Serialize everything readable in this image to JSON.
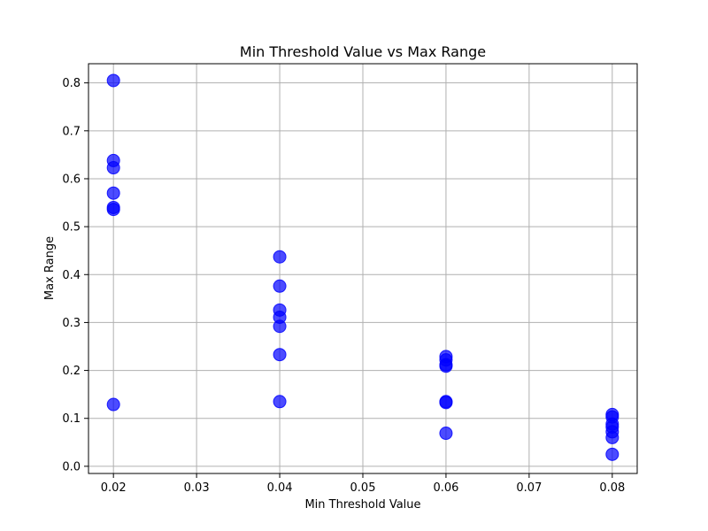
{
  "chart_data": {
    "type": "scatter",
    "title": "Min Threshold Value vs Max Range",
    "xlabel": "Min Threshold Value",
    "ylabel": "Max Range",
    "xlim": [
      0.017,
      0.083
    ],
    "ylim": [
      -0.015,
      0.84
    ],
    "xticks": [
      0.02,
      0.03,
      0.04,
      0.05,
      0.06,
      0.07,
      0.08
    ],
    "xtick_labels": [
      "0.02",
      "0.03",
      "0.04",
      "0.05",
      "0.06",
      "0.07",
      "0.08"
    ],
    "yticks": [
      0.0,
      0.1,
      0.2,
      0.3,
      0.4,
      0.5,
      0.6,
      0.7,
      0.8
    ],
    "ytick_labels": [
      "0.0",
      "0.1",
      "0.2",
      "0.3",
      "0.4",
      "0.5",
      "0.6",
      "0.7",
      "0.8"
    ],
    "grid": true,
    "marker_color": "#0000ff",
    "marker_opacity": 0.7,
    "points": [
      {
        "x": 0.02,
        "y": 0.805
      },
      {
        "x": 0.02,
        "y": 0.638
      },
      {
        "x": 0.02,
        "y": 0.623
      },
      {
        "x": 0.02,
        "y": 0.57
      },
      {
        "x": 0.02,
        "y": 0.54
      },
      {
        "x": 0.02,
        "y": 0.536
      },
      {
        "x": 0.02,
        "y": 0.129
      },
      {
        "x": 0.04,
        "y": 0.437
      },
      {
        "x": 0.04,
        "y": 0.376
      },
      {
        "x": 0.04,
        "y": 0.326
      },
      {
        "x": 0.04,
        "y": 0.311
      },
      {
        "x": 0.04,
        "y": 0.292
      },
      {
        "x": 0.04,
        "y": 0.233
      },
      {
        "x": 0.04,
        "y": 0.135
      },
      {
        "x": 0.06,
        "y": 0.229
      },
      {
        "x": 0.06,
        "y": 0.222
      },
      {
        "x": 0.06,
        "y": 0.212
      },
      {
        "x": 0.06,
        "y": 0.209
      },
      {
        "x": 0.06,
        "y": 0.135
      },
      {
        "x": 0.06,
        "y": 0.133
      },
      {
        "x": 0.06,
        "y": 0.069
      },
      {
        "x": 0.08,
        "y": 0.108
      },
      {
        "x": 0.08,
        "y": 0.103
      },
      {
        "x": 0.08,
        "y": 0.088
      },
      {
        "x": 0.08,
        "y": 0.082
      },
      {
        "x": 0.08,
        "y": 0.072
      },
      {
        "x": 0.08,
        "y": 0.06
      },
      {
        "x": 0.08,
        "y": 0.025
      }
    ]
  }
}
